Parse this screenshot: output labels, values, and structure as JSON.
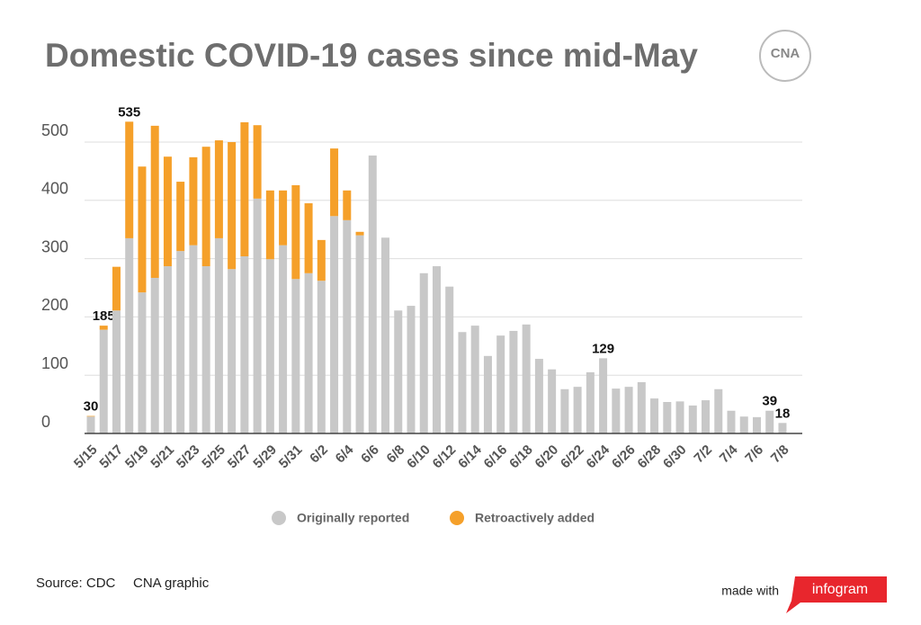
{
  "chart_data": {
    "type": "stacked_bar",
    "title": "Domestic COVID-19 cases since mid-May",
    "logo": "CNA",
    "source": "Source: CDC",
    "credit": "CNA graphic",
    "made_with": "made with",
    "brand": "infogram",
    "categories": [
      "5/15",
      null,
      "5/17",
      null,
      "5/19",
      null,
      "5/21",
      null,
      "5/23",
      null,
      "5/25",
      null,
      "5/27",
      null,
      "5/29",
      null,
      "5/31",
      null,
      "6/2",
      null,
      "6/4",
      null,
      "6/6",
      null,
      "6/8",
      null,
      "6/10",
      null,
      "6/12",
      null,
      "6/14",
      null,
      "6/16",
      null,
      "6/18",
      null,
      "6/20",
      null,
      "6/22",
      null,
      "6/24",
      null,
      "6/26",
      null,
      "6/28",
      null,
      "6/30",
      null,
      "7/2",
      null,
      "7/4",
      null,
      "7/6",
      null,
      "7/8"
    ],
    "series": [
      {
        "name": "Originally reported",
        "color": "#c8c8c8",
        "values": [
          29,
          178,
          211,
          335,
          242,
          267,
          287,
          313,
          323,
          287,
          335,
          282,
          304,
          403,
          299,
          323,
          265,
          275,
          262,
          373,
          366,
          340,
          477,
          336,
          211,
          219,
          275,
          287,
          252,
          174,
          185,
          133,
          168,
          176,
          187,
          128,
          110,
          76,
          80,
          105,
          129,
          77,
          80,
          88,
          60,
          54,
          55,
          48,
          57,
          76,
          39,
          29,
          28,
          39,
          18
        ]
      },
      {
        "name": "Retroactively added",
        "color": "#f5a02a",
        "values": [
          1,
          7,
          75,
          200,
          216,
          261,
          188,
          119,
          151,
          205,
          168,
          218,
          230,
          126,
          118,
          94,
          161,
          120,
          70,
          116,
          51,
          6,
          0,
          0,
          0,
          0,
          0,
          0,
          0,
          0,
          0,
          0,
          0,
          0,
          0,
          0,
          0,
          0,
          0,
          0,
          0,
          0,
          0,
          0,
          0,
          0,
          0,
          0,
          0,
          0,
          0,
          0,
          0,
          0,
          0
        ]
      }
    ],
    "totals": [
      30,
      185,
      null,
      535,
      null,
      null,
      null,
      null,
      null,
      null,
      null,
      null,
      null,
      null,
      null,
      null,
      null,
      null,
      null,
      null,
      null,
      null,
      null,
      null,
      null,
      null,
      null,
      null,
      null,
      null,
      null,
      null,
      null,
      null,
      null,
      null,
      null,
      null,
      null,
      null,
      129,
      null,
      null,
      null,
      null,
      null,
      null,
      null,
      null,
      null,
      null,
      null,
      null,
      39,
      18
    ],
    "ylim": [
      0,
      560
    ],
    "yticks": [
      0,
      100,
      200,
      300,
      400,
      500
    ],
    "grid": true
  }
}
